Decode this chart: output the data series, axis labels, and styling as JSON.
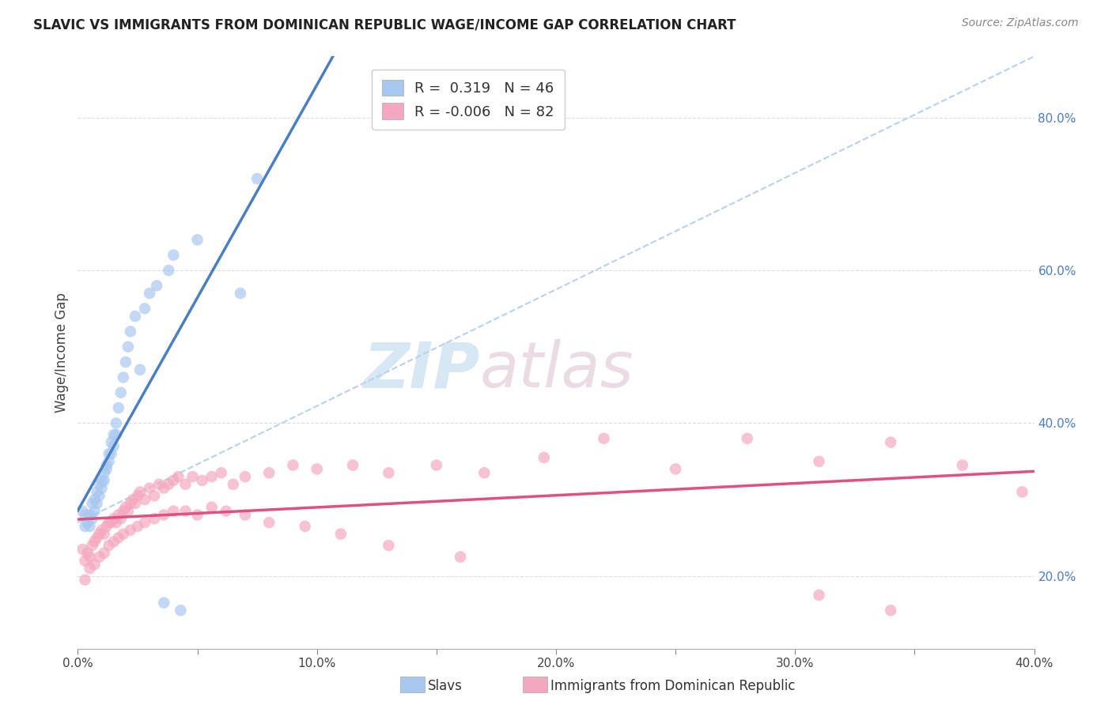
{
  "title": "SLAVIC VS IMMIGRANTS FROM DOMINICAN REPUBLIC WAGE/INCOME GAP CORRELATION CHART",
  "source": "Source: ZipAtlas.com",
  "ylabel": "Wage/Income Gap",
  "x_min": 0.0,
  "x_max": 0.4,
  "y_min": 0.105,
  "y_max": 0.88,
  "right_yticks": [
    0.2,
    0.4,
    0.6,
    0.8
  ],
  "right_yticklabels": [
    "20.0%",
    "40.0%",
    "60.0%",
    "80.0%"
  ],
  "bottom_xticks": [
    0.0,
    0.05,
    0.1,
    0.15,
    0.2,
    0.25,
    0.3,
    0.35,
    0.4
  ],
  "bottom_xticklabels": [
    "0.0%",
    "",
    "10.0%",
    "",
    "20.0%",
    "",
    "30.0%",
    "",
    "40.0%"
  ],
  "slavs_R": 0.319,
  "slavs_N": 46,
  "dr_R": -0.006,
  "dr_N": 82,
  "slavs_color": "#a8c8f0",
  "dr_color": "#f4a8c0",
  "slavs_line_color": "#4a7fc0",
  "dr_line_color": "#e05080",
  "dash_line_color": "#b0c8e8",
  "watermark_zip_color": "#b8d4ec",
  "watermark_atlas_color": "#d4b8cc",
  "background_color": "#ffffff",
  "slavs_x": [
    0.002,
    0.003,
    0.003,
    0.004,
    0.005,
    0.005,
    0.006,
    0.006,
    0.007,
    0.007,
    0.008,
    0.008,
    0.009,
    0.009,
    0.01,
    0.01,
    0.011,
    0.011,
    0.012,
    0.012,
    0.013,
    0.013,
    0.014,
    0.014,
    0.015,
    0.015,
    0.016,
    0.016,
    0.017,
    0.018,
    0.019,
    0.02,
    0.021,
    0.022,
    0.024,
    0.026,
    0.028,
    0.03,
    0.033,
    0.036,
    0.038,
    0.04,
    0.043,
    0.05,
    0.068,
    0.075
  ],
  "slavs_y": [
    0.285,
    0.265,
    0.28,
    0.27,
    0.265,
    0.28,
    0.275,
    0.295,
    0.285,
    0.3,
    0.295,
    0.31,
    0.305,
    0.32,
    0.315,
    0.325,
    0.325,
    0.335,
    0.34,
    0.345,
    0.35,
    0.36,
    0.36,
    0.375,
    0.37,
    0.385,
    0.385,
    0.4,
    0.42,
    0.44,
    0.46,
    0.48,
    0.5,
    0.52,
    0.54,
    0.47,
    0.55,
    0.57,
    0.58,
    0.165,
    0.6,
    0.62,
    0.155,
    0.64,
    0.57,
    0.72
  ],
  "dr_x": [
    0.002,
    0.003,
    0.004,
    0.005,
    0.006,
    0.007,
    0.008,
    0.009,
    0.01,
    0.011,
    0.012,
    0.013,
    0.014,
    0.015,
    0.016,
    0.017,
    0.018,
    0.019,
    0.02,
    0.021,
    0.022,
    0.023,
    0.024,
    0.025,
    0.026,
    0.028,
    0.03,
    0.032,
    0.034,
    0.036,
    0.038,
    0.04,
    0.042,
    0.045,
    0.048,
    0.052,
    0.056,
    0.06,
    0.065,
    0.07,
    0.08,
    0.09,
    0.1,
    0.115,
    0.13,
    0.15,
    0.17,
    0.195,
    0.22,
    0.25,
    0.28,
    0.31,
    0.34,
    0.37,
    0.395,
    0.003,
    0.005,
    0.007,
    0.009,
    0.011,
    0.013,
    0.015,
    0.017,
    0.019,
    0.022,
    0.025,
    0.028,
    0.032,
    0.036,
    0.04,
    0.045,
    0.05,
    0.056,
    0.062,
    0.07,
    0.08,
    0.095,
    0.11,
    0.13,
    0.16,
    0.31,
    0.34
  ],
  "dr_y": [
    0.235,
    0.22,
    0.23,
    0.225,
    0.24,
    0.245,
    0.25,
    0.255,
    0.26,
    0.255,
    0.265,
    0.27,
    0.27,
    0.275,
    0.27,
    0.28,
    0.275,
    0.285,
    0.29,
    0.285,
    0.295,
    0.3,
    0.295,
    0.305,
    0.31,
    0.3,
    0.315,
    0.305,
    0.32,
    0.315,
    0.32,
    0.325,
    0.33,
    0.32,
    0.33,
    0.325,
    0.33,
    0.335,
    0.32,
    0.33,
    0.335,
    0.345,
    0.34,
    0.345,
    0.335,
    0.345,
    0.335,
    0.355,
    0.38,
    0.34,
    0.38,
    0.35,
    0.375,
    0.345,
    0.31,
    0.195,
    0.21,
    0.215,
    0.225,
    0.23,
    0.24,
    0.245,
    0.25,
    0.255,
    0.26,
    0.265,
    0.27,
    0.275,
    0.28,
    0.285,
    0.285,
    0.28,
    0.29,
    0.285,
    0.28,
    0.27,
    0.265,
    0.255,
    0.24,
    0.225,
    0.175,
    0.155
  ]
}
